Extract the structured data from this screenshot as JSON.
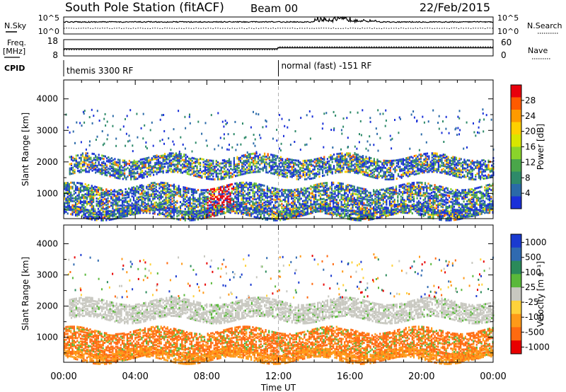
{
  "header": {
    "title": "South Pole Station (fitACF)",
    "beam": "Beam 00",
    "date": "22/Feb/2015"
  },
  "top_panels": {
    "nsky_label": "N.Sky",
    "nsearch_label": "N.Search",
    "noise_ticks_left": [
      "10^5",
      "10^0"
    ],
    "noise_ticks_right": [
      "10^5",
      "10^0"
    ],
    "freq_label": "Freq.",
    "freq_unit": "[MHz]",
    "freq_ticks": [
      "18",
      "8"
    ],
    "nave_label": "Nave",
    "nave_ticks": [
      "60",
      "0"
    ],
    "cpid_label": "CPID",
    "cpid_segments": [
      {
        "label": "themis 3300 RF",
        "start_hour": 0
      },
      {
        "label": "normal (fast) -151 RF",
        "start_hour": 12
      }
    ]
  },
  "chart_data": [
    {
      "type": "heatmap",
      "title": "",
      "ylabel": "Slant Range [km]",
      "ylim": [
        200,
        4600
      ],
      "yticks": [
        1000,
        2000,
        3000,
        4000
      ],
      "xlim": [
        0,
        24
      ],
      "colorbar": {
        "label": "Power [dB]",
        "ticks": [
          "28",
          "24",
          "20",
          "16",
          "12",
          "8",
          "4"
        ],
        "colors": [
          "#e8000c",
          "#ff5a00",
          "#ff9a00",
          "#ffd000",
          "#d9e600",
          "#8ad42b",
          "#4aa64a",
          "#2e8a69",
          "#2a6aa8",
          "#1a30d8"
        ]
      },
      "bands": [
        {
          "name": "echo band",
          "x": [
            0.3,
            24
          ],
          "y": [
            1600,
            2200
          ]
        },
        {
          "name": "echo band",
          "x": [
            0,
            24
          ],
          "y": [
            400,
            1300
          ]
        },
        {
          "name": "echo band",
          "x": [
            0,
            24
          ],
          "y": [
            300,
            600
          ]
        }
      ]
    },
    {
      "type": "heatmap",
      "title": "",
      "ylabel": "Slant Range [km]",
      "ylim": [
        200,
        4600
      ],
      "yticks": [
        1000,
        2000,
        3000,
        4000
      ],
      "xlim": [
        0,
        24
      ],
      "xticks": [
        "00:00",
        "04:00",
        "08:00",
        "12:00",
        "16:00",
        "20:00",
        "00:00"
      ],
      "xlabel": "Time UT",
      "colorbar": {
        "label": "Velocity [m s^-1]",
        "ticks": [
          "1000",
          "500",
          "100",
          "25",
          "-25",
          "-100",
          "-500",
          "-1000"
        ],
        "colors": [
          "#1a3ad0",
          "#2f6ab0",
          "#2a8a5a",
          "#5ab83a",
          "#c8c8c0",
          "#ffd23a",
          "#ff9a18",
          "#ff6a10",
          "#e80000"
        ]
      },
      "bands": [
        {
          "name": "echo band",
          "x": [
            0.3,
            24
          ],
          "y": [
            1600,
            2200
          ]
        },
        {
          "name": "echo band",
          "x": [
            0,
            24
          ],
          "y": [
            400,
            1300
          ]
        },
        {
          "name": "echo band",
          "x": [
            0,
            24
          ],
          "y": [
            300,
            600
          ]
        }
      ]
    }
  ]
}
